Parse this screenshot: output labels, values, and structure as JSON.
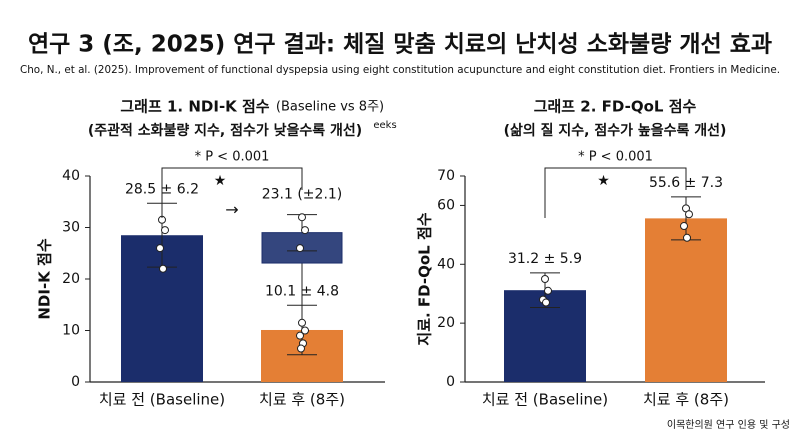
{
  "header": {
    "title": "연구 3 (조, 2025) 연구 결과: 체질 맞춤 치료의 난치성 소화불량 개선 효과",
    "citation": "Cho, N., et al. (2025). Improvement of functional dyspepsia using eight constitution acupuncture and eight constitution diet. Frontiers in Medicine."
  },
  "chart_data": [
    {
      "type": "bar",
      "title": "그래프 1. NDI-K 점수",
      "subtitle": "(Baseline vs 8주)",
      "note": "(주관적 소화불량 지수, 점수가 낮을수록 개선)",
      "superscript": "eeks",
      "y_label": "NDI-K 점수",
      "categories": [
        "치료 전 (Baseline)",
        "치료 후 (8주)"
      ],
      "values": [
        28.5,
        10.1
      ],
      "errors": [
        6.2,
        4.8
      ],
      "value_labels": [
        "28.5 ± 6.2",
        "10.1 ± 4.8"
      ],
      "colors": [
        "#1b2d6b",
        "#e47f35"
      ],
      "points": [
        [
          31.5,
          29.5,
          26,
          22
        ],
        [
          11.5,
          10,
          9,
          7.5,
          6.5
        ]
      ],
      "overlay": {
        "low": 23.1,
        "high": 29,
        "whisker_high": 32.5,
        "whisker_low": 12.5,
        "label": "23.1 (±2.1)",
        "arrow": "→",
        "points": [
          32,
          29.5,
          26
        ],
        "color": "#34467e"
      },
      "significance": {
        "label": "* P < 0.001",
        "symbol": "★"
      },
      "ylim": [
        0,
        40
      ],
      "yticks": [
        0,
        10,
        20,
        30,
        40
      ]
    },
    {
      "type": "bar",
      "title": "그래프 2. FD-QoL 점수",
      "note": "(삶의 질 지수, 점수가 높을수록 개선)",
      "y_label": "지료. FD-QoL 점수",
      "categories": [
        "치료 전 (Baseline)",
        "치료 후 (8주)"
      ],
      "values": [
        31.2,
        55.6
      ],
      "errors": [
        5.9,
        7.3
      ],
      "value_labels": [
        "31.2 ± 5.9",
        "55.6 ± 7.3"
      ],
      "colors": [
        "#1b2d6b",
        "#e47f35"
      ],
      "points": [
        [
          35,
          31,
          28,
          27
        ],
        [
          59,
          57,
          53,
          49
        ]
      ],
      "significance": {
        "label": "* P < 0.001",
        "symbol": "★"
      },
      "ylim": [
        0,
        70
      ],
      "yticks": [
        0,
        20,
        40,
        60,
        70
      ]
    }
  ],
  "footer": "이목한의원 연구 인용 및 구성"
}
